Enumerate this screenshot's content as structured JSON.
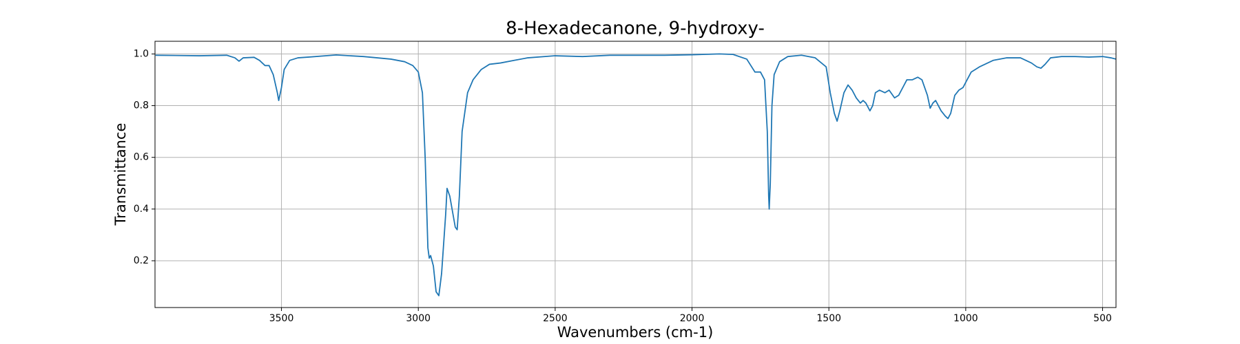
{
  "chart_data": {
    "type": "line",
    "title": "8-Hexadecanone, 9-hydroxy-",
    "x_label": "Wavenumbers (cm-1)",
    "y_label": "Transmittance",
    "color": "#1f77b4",
    "grid": true,
    "x_inverted": true,
    "xlim": [
      3962,
      451
    ],
    "ylim": [
      0.019,
      1.049
    ],
    "xticks": [
      3500,
      3000,
      2500,
      2000,
      1500,
      1000,
      500
    ],
    "yticks": [
      0.2,
      0.4,
      0.6,
      0.8,
      {
        "value": 1,
        "label": "1.0"
      }
    ],
    "x": [
      3960,
      3800,
      3700,
      3670,
      3655,
      3640,
      3600,
      3580,
      3560,
      3545,
      3530,
      3515,
      3510,
      3500,
      3490,
      3470,
      3440,
      3400,
      3300,
      3200,
      3100,
      3050,
      3020,
      3000,
      2985,
      2975,
      2965,
      2960,
      2955,
      2945,
      2935,
      2925,
      2915,
      2900,
      2895,
      2885,
      2875,
      2865,
      2858,
      2850,
      2840,
      2820,
      2800,
      2770,
      2740,
      2700,
      2650,
      2600,
      2500,
      2400,
      2300,
      2200,
      2100,
      2000,
      1900,
      1850,
      1800,
      1770,
      1750,
      1735,
      1725,
      1720,
      1718,
      1714,
      1708,
      1700,
      1680,
      1650,
      1600,
      1550,
      1510,
      1495,
      1480,
      1470,
      1460,
      1445,
      1430,
      1415,
      1400,
      1385,
      1375,
      1365,
      1350,
      1340,
      1330,
      1315,
      1295,
      1280,
      1260,
      1245,
      1230,
      1215,
      1195,
      1175,
      1160,
      1140,
      1130,
      1120,
      1110,
      1100,
      1090,
      1075,
      1065,
      1055,
      1040,
      1025,
      1010,
      995,
      980,
      950,
      920,
      900,
      850,
      800,
      780,
      760,
      740,
      725,
      710,
      690,
      650,
      600,
      550,
      500,
      470,
      451
    ],
    "values": [
      0.995,
      0.993,
      0.995,
      0.985,
      0.972,
      0.985,
      0.987,
      0.975,
      0.955,
      0.955,
      0.92,
      0.85,
      0.82,
      0.87,
      0.94,
      0.975,
      0.985,
      0.988,
      0.996,
      0.99,
      0.98,
      0.97,
      0.955,
      0.93,
      0.85,
      0.6,
      0.25,
      0.21,
      0.22,
      0.18,
      0.08,
      0.065,
      0.15,
      0.38,
      0.48,
      0.45,
      0.39,
      0.33,
      0.32,
      0.45,
      0.7,
      0.85,
      0.9,
      0.94,
      0.96,
      0.965,
      0.975,
      0.985,
      0.993,
      0.99,
      0.995,
      0.995,
      0.995,
      0.997,
      1.0,
      0.998,
      0.98,
      0.93,
      0.93,
      0.9,
      0.7,
      0.45,
      0.4,
      0.5,
      0.8,
      0.92,
      0.97,
      0.99,
      0.995,
      0.985,
      0.95,
      0.85,
      0.77,
      0.74,
      0.78,
      0.85,
      0.88,
      0.86,
      0.83,
      0.81,
      0.82,
      0.81,
      0.78,
      0.8,
      0.85,
      0.86,
      0.85,
      0.86,
      0.83,
      0.84,
      0.87,
      0.9,
      0.9,
      0.91,
      0.9,
      0.84,
      0.79,
      0.81,
      0.82,
      0.8,
      0.78,
      0.76,
      0.75,
      0.77,
      0.84,
      0.86,
      0.87,
      0.9,
      0.93,
      0.95,
      0.965,
      0.975,
      0.985,
      0.985,
      0.975,
      0.965,
      0.95,
      0.945,
      0.96,
      0.985,
      0.99,
      0.99,
      0.988,
      0.99,
      0.985,
      0.98
    ]
  }
}
